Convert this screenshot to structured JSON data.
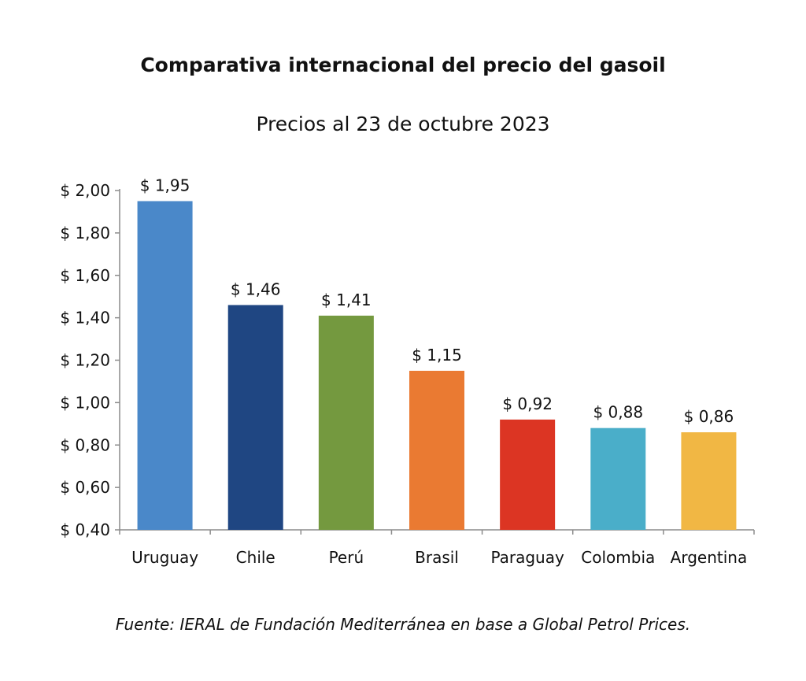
{
  "chart_data": {
    "type": "bar",
    "title": "Comparativa internacional del precio del gasoil",
    "subtitle": "Precios al 23 de octubre 2023",
    "categories": [
      "Uruguay",
      "Chile",
      "Perú",
      "Brasil",
      "Paraguay",
      "Colombia",
      "Argentina"
    ],
    "values": [
      1.95,
      1.46,
      1.41,
      1.15,
      0.92,
      0.88,
      0.86
    ],
    "data_labels": [
      "$ 1,95",
      "$ 1,46",
      "$ 1,41",
      "$ 1,15",
      "$ 0,92",
      "$ 0,88",
      "$ 0,86"
    ],
    "colors": [
      "#4a88c9",
      "#1f4682",
      "#74993f",
      "#ea7a32",
      "#dc3523",
      "#4aaec9",
      "#f1b744"
    ],
    "ylim": [
      0.4,
      2.0
    ],
    "yticks": [
      0.4,
      0.6,
      0.8,
      1.0,
      1.2,
      1.4,
      1.6,
      1.8,
      2.0
    ],
    "ytick_labels": [
      "$ 0,40",
      "$ 0,60",
      "$ 0,80",
      "$ 1,00",
      "$ 1,20",
      "$ 1,40",
      "$ 1,60",
      "$ 1,80",
      "$ 2,00"
    ],
    "grid": false,
    "legend": "none",
    "source_note": "Fuente: IERAL de Fundación Mediterránea en base a Global Petrol Prices."
  }
}
